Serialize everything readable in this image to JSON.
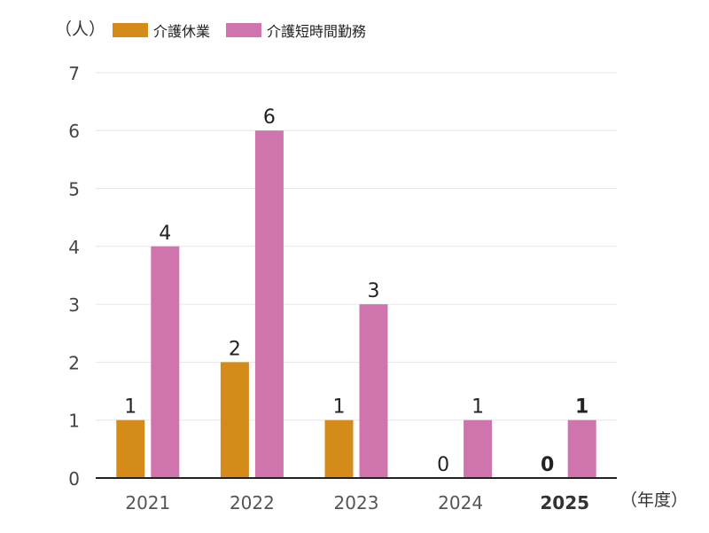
{
  "chart_data": {
    "type": "bar",
    "y_unit": "（人）",
    "x_unit": "（年度）",
    "categories": [
      "2021",
      "2022",
      "2023",
      "2024",
      "2025"
    ],
    "highlight_category": "2025",
    "ylim": [
      0,
      7
    ],
    "yticks": [
      "0",
      "1",
      "2",
      "3",
      "4",
      "5",
      "6",
      "7"
    ],
    "grid": true,
    "legend_position": "top-left",
    "series": [
      {
        "name": "介護休業",
        "values": [
          1,
          2,
          1,
          0,
          0
        ],
        "color": "#d48b1a"
      },
      {
        "name": "介護短時間勤務",
        "values": [
          4,
          6,
          3,
          1,
          1
        ],
        "color": "#cf74ad"
      }
    ]
  }
}
